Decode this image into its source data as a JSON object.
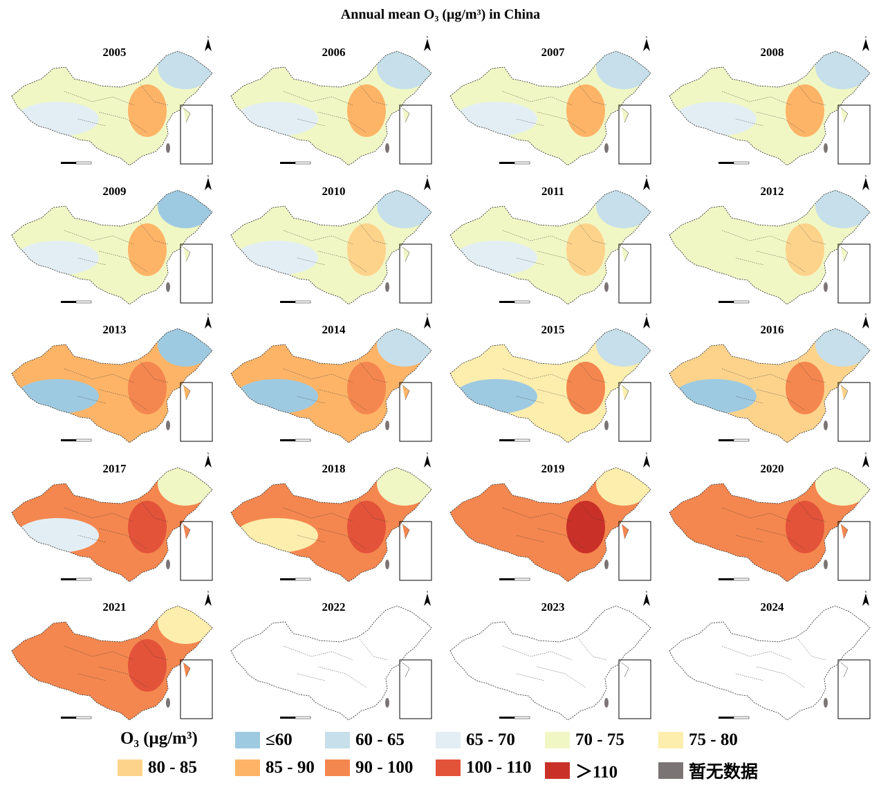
{
  "title": "Annual mean O₃ (μg/m³) in China",
  "legend": {
    "title": "O₃ (μg/m³)",
    "classes": [
      {
        "label": "≤60",
        "color": "#9ecae1"
      },
      {
        "label": "60 - 65",
        "color": "#c6dfea"
      },
      {
        "label": "65 - 70",
        "color": "#e3eef4"
      },
      {
        "label": "70 - 75",
        "color": "#f1f7c4"
      },
      {
        "label": "75 - 80",
        "color": "#fdeead"
      },
      {
        "label": "80 - 85",
        "color": "#fdd38c"
      },
      {
        "label": "85 - 90",
        "color": "#fdb467"
      },
      {
        "label": "90 - 100",
        "color": "#f4874f"
      },
      {
        "label": "100 - 110",
        "color": "#e3533a"
      },
      {
        "label": "＞110",
        "color": "#c93128"
      },
      {
        "label": "暂无数据",
        "color": "#7a7574"
      }
    ]
  },
  "north_label": "N",
  "panels": [
    {
      "year": "2005",
      "dominant_class": 3,
      "north_china_class": 6,
      "tibet_class": 2,
      "northeast_class": 1
    },
    {
      "year": "2006",
      "dominant_class": 3,
      "north_china_class": 6,
      "tibet_class": 2,
      "northeast_class": 1
    },
    {
      "year": "2007",
      "dominant_class": 3,
      "north_china_class": 6,
      "tibet_class": 2,
      "northeast_class": 1
    },
    {
      "year": "2008",
      "dominant_class": 3,
      "north_china_class": 6,
      "tibet_class": 2,
      "northeast_class": 1
    },
    {
      "year": "2009",
      "dominant_class": 3,
      "north_china_class": 6,
      "tibet_class": 2,
      "northeast_class": 0
    },
    {
      "year": "2010",
      "dominant_class": 3,
      "north_china_class": 5,
      "tibet_class": 2,
      "northeast_class": 1
    },
    {
      "year": "2011",
      "dominant_class": 3,
      "north_china_class": 5,
      "tibet_class": 2,
      "northeast_class": 1
    },
    {
      "year": "2012",
      "dominant_class": 3,
      "north_china_class": 5,
      "tibet_class": 3,
      "northeast_class": 1
    },
    {
      "year": "2013",
      "dominant_class": 6,
      "north_china_class": 7,
      "tibet_class": 0,
      "northeast_class": 0
    },
    {
      "year": "2014",
      "dominant_class": 6,
      "north_china_class": 7,
      "tibet_class": 0,
      "northeast_class": 1
    },
    {
      "year": "2015",
      "dominant_class": 4,
      "north_china_class": 7,
      "tibet_class": 0,
      "northeast_class": 1
    },
    {
      "year": "2016",
      "dominant_class": 5,
      "north_china_class": 7,
      "tibet_class": 0,
      "northeast_class": 1
    },
    {
      "year": "2017",
      "dominant_class": 7,
      "north_china_class": 8,
      "tibet_class": 2,
      "northeast_class": 3
    },
    {
      "year": "2018",
      "dominant_class": 7,
      "north_china_class": 8,
      "tibet_class": 4,
      "northeast_class": 3
    },
    {
      "year": "2019",
      "dominant_class": 7,
      "north_china_class": 9,
      "tibet_class": 7,
      "northeast_class": 4
    },
    {
      "year": "2020",
      "dominant_class": 7,
      "north_china_class": 8,
      "tibet_class": 7,
      "northeast_class": 3
    },
    {
      "year": "2021",
      "dominant_class": 7,
      "north_china_class": 8,
      "tibet_class": 7,
      "northeast_class": 4
    },
    {
      "year": "2022",
      "dominant_class": null,
      "north_china_class": null,
      "tibet_class": null,
      "northeast_class": null
    },
    {
      "year": "2023",
      "dominant_class": null,
      "north_china_class": null,
      "tibet_class": null,
      "northeast_class": null
    },
    {
      "year": "2024",
      "dominant_class": null,
      "north_china_class": null,
      "tibet_class": null,
      "northeast_class": null
    }
  ]
}
